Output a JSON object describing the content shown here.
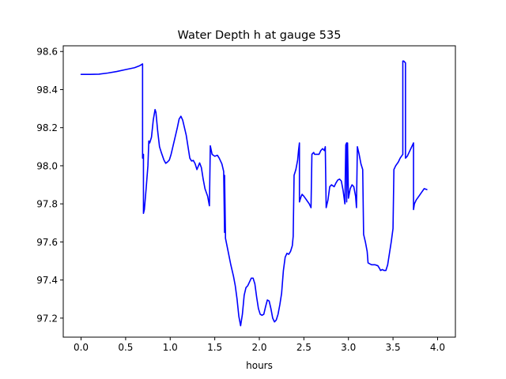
{
  "chart_data": {
    "type": "line",
    "title": "Water Depth h at gauge 535",
    "xlabel": "hours",
    "ylabel": "",
    "xlim": [
      -0.2,
      4.2
    ],
    "ylim": [
      97.1,
      98.63
    ],
    "xticks": [
      0.0,
      0.5,
      1.0,
      1.5,
      2.0,
      2.5,
      3.0,
      3.5,
      4.0
    ],
    "xtick_labels": [
      "0.0",
      "0.5",
      "1.0",
      "1.5",
      "2.0",
      "2.5",
      "3.0",
      "3.5",
      "4.0"
    ],
    "yticks": [
      97.2,
      97.4,
      97.6,
      97.8,
      98.0,
      98.2,
      98.4,
      98.6
    ],
    "ytick_labels": [
      "97.2",
      "97.4",
      "97.6",
      "97.8",
      "98.0",
      "98.2",
      "98.4",
      "98.6"
    ],
    "grid": false,
    "legend": false,
    "series": [
      {
        "color": "#0000ff",
        "points": [
          [
            0.0,
            98.48
          ],
          [
            0.1,
            98.48
          ],
          [
            0.2,
            98.481
          ],
          [
            0.3,
            98.487
          ],
          [
            0.4,
            98.495
          ],
          [
            0.5,
            98.505
          ],
          [
            0.6,
            98.515
          ],
          [
            0.66,
            98.526
          ],
          [
            0.69,
            98.535
          ],
          [
            0.69,
            98.04
          ],
          [
            0.7,
            98.06
          ],
          [
            0.7,
            97.75
          ],
          [
            0.71,
            97.77
          ],
          [
            0.73,
            97.88
          ],
          [
            0.75,
            98.0
          ],
          [
            0.76,
            98.13
          ],
          [
            0.77,
            98.12
          ],
          [
            0.79,
            98.15
          ],
          [
            0.81,
            98.24
          ],
          [
            0.83,
            98.295
          ],
          [
            0.84,
            98.28
          ],
          [
            0.86,
            98.18
          ],
          [
            0.88,
            98.1
          ],
          [
            0.9,
            98.07
          ],
          [
            0.93,
            98.03
          ],
          [
            0.95,
            98.013
          ],
          [
            0.97,
            98.02
          ],
          [
            0.99,
            98.03
          ],
          [
            1.01,
            98.06
          ],
          [
            1.03,
            98.1
          ],
          [
            1.05,
            98.14
          ],
          [
            1.08,
            98.2
          ],
          [
            1.1,
            98.245
          ],
          [
            1.12,
            98.26
          ],
          [
            1.14,
            98.24
          ],
          [
            1.16,
            98.2
          ],
          [
            1.18,
            98.16
          ],
          [
            1.2,
            98.1
          ],
          [
            1.22,
            98.04
          ],
          [
            1.24,
            98.025
          ],
          [
            1.26,
            98.028
          ],
          [
            1.28,
            98.01
          ],
          [
            1.3,
            97.98
          ],
          [
            1.33,
            98.015
          ],
          [
            1.35,
            97.99
          ],
          [
            1.37,
            97.93
          ],
          [
            1.39,
            97.88
          ],
          [
            1.42,
            97.84
          ],
          [
            1.44,
            97.79
          ],
          [
            1.45,
            98.105
          ],
          [
            1.47,
            98.06
          ],
          [
            1.5,
            98.05
          ],
          [
            1.53,
            98.055
          ],
          [
            1.55,
            98.04
          ],
          [
            1.58,
            98.01
          ],
          [
            1.6,
            97.97
          ],
          [
            1.61,
            97.65
          ],
          [
            1.61,
            97.95
          ],
          [
            1.62,
            97.64
          ],
          [
            1.62,
            97.62
          ],
          [
            1.65,
            97.55
          ],
          [
            1.68,
            97.48
          ],
          [
            1.71,
            97.42
          ],
          [
            1.73,
            97.37
          ],
          [
            1.75,
            97.3
          ],
          [
            1.77,
            97.21
          ],
          [
            1.79,
            97.16
          ],
          [
            1.81,
            97.22
          ],
          [
            1.83,
            97.32
          ],
          [
            1.85,
            97.36
          ],
          [
            1.87,
            97.37
          ],
          [
            1.89,
            97.39
          ],
          [
            1.91,
            97.41
          ],
          [
            1.93,
            97.41
          ],
          [
            1.95,
            97.38
          ],
          [
            1.97,
            97.31
          ],
          [
            1.99,
            97.25
          ],
          [
            2.01,
            97.22
          ],
          [
            2.03,
            97.215
          ],
          [
            2.05,
            97.22
          ],
          [
            2.07,
            97.26
          ],
          [
            2.09,
            97.295
          ],
          [
            2.11,
            97.29
          ],
          [
            2.13,
            97.25
          ],
          [
            2.15,
            97.2
          ],
          [
            2.17,
            97.18
          ],
          [
            2.19,
            97.19
          ],
          [
            2.21,
            97.22
          ],
          [
            2.23,
            97.27
          ],
          [
            2.25,
            97.33
          ],
          [
            2.27,
            97.45
          ],
          [
            2.29,
            97.52
          ],
          [
            2.31,
            97.54
          ],
          [
            2.33,
            97.535
          ],
          [
            2.35,
            97.55
          ],
          [
            2.37,
            97.58
          ],
          [
            2.38,
            97.63
          ],
          [
            2.39,
            97.95
          ],
          [
            2.41,
            97.98
          ],
          [
            2.43,
            98.03
          ],
          [
            2.44,
            98.08
          ],
          [
            2.45,
            98.12
          ],
          [
            2.45,
            97.81
          ],
          [
            2.47,
            97.84
          ],
          [
            2.48,
            97.85
          ],
          [
            2.5,
            97.84
          ],
          [
            2.53,
            97.82
          ],
          [
            2.56,
            97.8
          ],
          [
            2.58,
            97.78
          ],
          [
            2.59,
            98.06
          ],
          [
            2.61,
            98.07
          ],
          [
            2.62,
            98.06
          ],
          [
            2.65,
            98.06
          ],
          [
            2.67,
            98.06
          ],
          [
            2.69,
            98.08
          ],
          [
            2.71,
            98.09
          ],
          [
            2.73,
            98.08
          ],
          [
            2.74,
            98.1
          ],
          [
            2.75,
            97.78
          ],
          [
            2.77,
            97.82
          ],
          [
            2.79,
            97.89
          ],
          [
            2.81,
            97.9
          ],
          [
            2.84,
            97.89
          ],
          [
            2.86,
            97.91
          ],
          [
            2.88,
            97.925
          ],
          [
            2.9,
            97.93
          ],
          [
            2.92,
            97.92
          ],
          [
            2.94,
            97.87
          ],
          [
            2.96,
            97.8
          ],
          [
            2.97,
            98.11
          ],
          [
            2.98,
            98.12
          ],
          [
            2.98,
            97.81
          ],
          [
            2.99,
            98.12
          ],
          [
            3.0,
            97.83
          ],
          [
            3.02,
            97.88
          ],
          [
            3.04,
            97.9
          ],
          [
            3.06,
            97.89
          ],
          [
            3.08,
            97.84
          ],
          [
            3.09,
            97.78
          ],
          [
            3.1,
            98.1
          ],
          [
            3.12,
            98.06
          ],
          [
            3.14,
            98.01
          ],
          [
            3.16,
            97.98
          ],
          [
            3.17,
            97.64
          ],
          [
            3.19,
            97.6
          ],
          [
            3.21,
            97.55
          ],
          [
            3.22,
            97.49
          ],
          [
            3.24,
            97.485
          ],
          [
            3.26,
            97.48
          ],
          [
            3.3,
            97.48
          ],
          [
            3.33,
            97.475
          ],
          [
            3.35,
            97.46
          ],
          [
            3.36,
            97.45
          ],
          [
            3.38,
            97.455
          ],
          [
            3.4,
            97.45
          ],
          [
            3.42,
            97.45
          ],
          [
            3.44,
            97.48
          ],
          [
            3.46,
            97.54
          ],
          [
            3.48,
            97.6
          ],
          [
            3.5,
            97.67
          ],
          [
            3.51,
            97.98
          ],
          [
            3.53,
            98.0
          ],
          [
            3.56,
            98.02
          ],
          [
            3.58,
            98.04
          ],
          [
            3.61,
            98.06
          ],
          [
            3.61,
            98.55
          ],
          [
            3.62,
            98.55
          ],
          [
            3.64,
            98.54
          ],
          [
            3.64,
            98.04
          ],
          [
            3.66,
            98.05
          ],
          [
            3.68,
            98.07
          ],
          [
            3.7,
            98.09
          ],
          [
            3.72,
            98.11
          ],
          [
            3.73,
            98.12
          ],
          [
            3.73,
            97.77
          ],
          [
            3.74,
            97.8
          ],
          [
            3.76,
            97.82
          ],
          [
            3.79,
            97.84
          ],
          [
            3.82,
            97.86
          ],
          [
            3.85,
            97.88
          ],
          [
            3.88,
            97.875
          ]
        ]
      }
    ]
  }
}
